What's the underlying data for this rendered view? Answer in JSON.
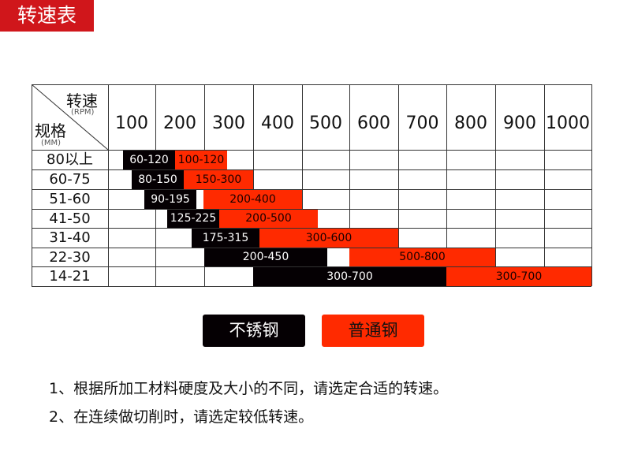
{
  "title": "转速表",
  "table": {
    "header_speed": "转速",
    "header_speed_unit": "(RPM)",
    "header_size": "规格",
    "header_size_unit": "(MM)",
    "speeds": [
      "100",
      "200",
      "300",
      "400",
      "500",
      "600",
      "700",
      "800",
      "900",
      "1000"
    ],
    "rows": [
      {
        "size": "80以上",
        "stainless": "60-120",
        "carbon": "100-120"
      },
      {
        "size": "60-75",
        "stainless": "80-150",
        "carbon": "150-300"
      },
      {
        "size": "51-60",
        "stainless": "90-195",
        "carbon": "200-400"
      },
      {
        "size": "41-50",
        "stainless": "125-225",
        "carbon": "200-500"
      },
      {
        "size": "31-40",
        "stainless": "175-315",
        "carbon": "300-600"
      },
      {
        "size": "22-30",
        "stainless": "200-450",
        "carbon": "500-800"
      },
      {
        "size": "14-21",
        "stainless": "300-700",
        "carbon": "300-700"
      }
    ]
  },
  "legend": {
    "stainless": {
      "label": "不锈钢",
      "color": "#050003"
    },
    "carbon": {
      "label": "普通钢",
      "color": "#ff2a00"
    }
  },
  "notes": [
    "1、根据所加工材料硬度及大小的不同，请选定合适的转速。",
    "2、在连续做切削时，请选定较低转速。"
  ]
}
